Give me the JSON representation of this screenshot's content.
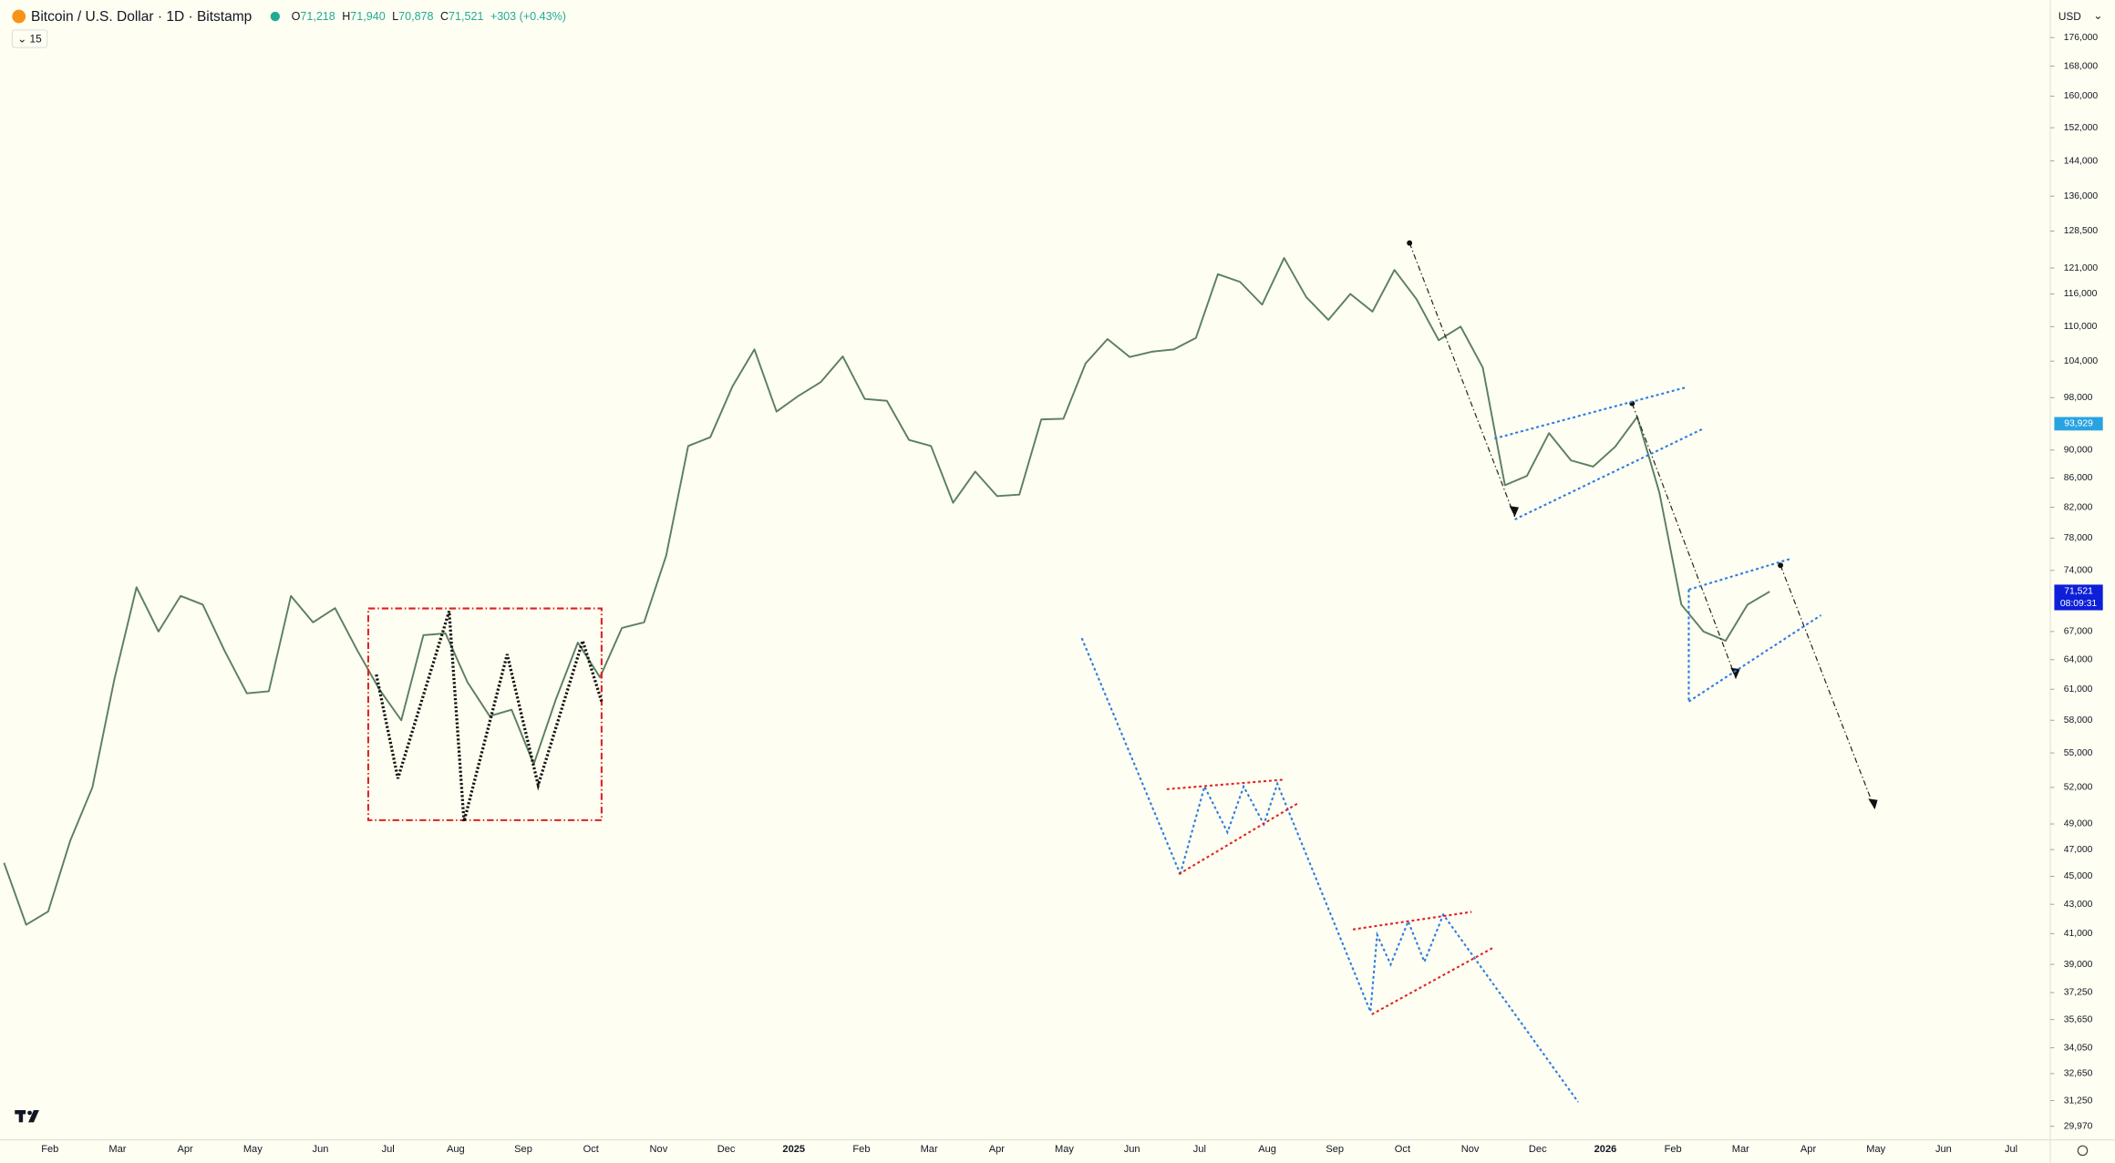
{
  "header": {
    "title": "Bitcoin / U.S. Dollar · 1D · Bitstamp",
    "ohlc": [
      {
        "label": "O",
        "value": "71,218"
      },
      {
        "label": "H",
        "value": "71,940"
      },
      {
        "label": "L",
        "value": "70,878"
      },
      {
        "label": "C",
        "value": "71,521"
      }
    ],
    "change": "+303 (+0.43%)",
    "indicator": "15",
    "currency": "USD"
  },
  "chart_data": {
    "type": "line",
    "log_scale": true,
    "color": "#5b7f63",
    "x_labels": [
      "Feb",
      "Mar",
      "Apr",
      "May",
      "Jun",
      "Jul",
      "Aug",
      "Sep",
      "Oct",
      "Nov",
      "Dec",
      "2025",
      "Feb",
      "Mar",
      "Apr",
      "May",
      "Jun",
      "Jul",
      "Aug",
      "Sep",
      "Oct",
      "Nov",
      "Dec",
      "2026",
      "Feb",
      "Mar",
      "Apr",
      "May",
      "Jun",
      "Jul"
    ],
    "values": [
      46000,
      41600,
      42500,
      47700,
      52000,
      62000,
      72000,
      67000,
      71000,
      70000,
      64900,
      60600,
      60800,
      71000,
      68000,
      69600,
      65000,
      61000,
      58000,
      66600,
      66800,
      61700,
      58400,
      59000,
      54000,
      60000,
      65800,
      62200,
      67400,
      68000,
      75800,
      90600,
      91900,
      99800,
      106000,
      95800,
      98300,
      100500,
      104800,
      97800,
      97500,
      91500,
      90600,
      82600,
      86900,
      83500,
      83700,
      94600,
      94700,
      103600,
      107800,
      104700,
      105600,
      106000,
      108000,
      119800,
      118300,
      114000,
      123000,
      115400,
      111200,
      116000,
      112700,
      120600,
      115000,
      107600,
      110000,
      102900,
      85000,
      86300,
      92500,
      88500,
      87600,
      90500,
      95000,
      84000,
      70000,
      67000,
      66000,
      70000,
      71500
    ],
    "ylim": [
      29320,
      187000
    ],
    "yticks": [
      {
        "value": 176000,
        "label": "176,000"
      },
      {
        "value": 168000,
        "label": "168,000"
      },
      {
        "value": 160000,
        "label": "160,000"
      },
      {
        "value": 152000,
        "label": "152,000"
      },
      {
        "value": 144000,
        "label": "144,000"
      },
      {
        "value": 136000,
        "label": "136,000"
      },
      {
        "value": 128500,
        "label": "128,500"
      },
      {
        "value": 121000,
        "label": "121,000"
      },
      {
        "value": 116000,
        "label": "116,000"
      },
      {
        "value": 110000,
        "label": "110,000"
      },
      {
        "value": 104000,
        "label": "104,000"
      },
      {
        "value": 98000,
        "label": "98,000"
      },
      {
        "value": 90000,
        "label": "90,000"
      },
      {
        "value": 86000,
        "label": "86,000"
      },
      {
        "value": 82000,
        "label": "82,000"
      },
      {
        "value": 78000,
        "label": "78,000"
      },
      {
        "value": 74000,
        "label": "74,000"
      },
      {
        "value": 67000,
        "label": "67,000"
      },
      {
        "value": 64000,
        "label": "64,000"
      },
      {
        "value": 61000,
        "label": "61,000"
      },
      {
        "value": 58000,
        "label": "58,000"
      },
      {
        "value": 55000,
        "label": "55,000"
      },
      {
        "value": 52000,
        "label": "52,000"
      },
      {
        "value": 49000,
        "label": "49,000"
      },
      {
        "value": 47000,
        "label": "47,000"
      },
      {
        "value": 45000,
        "label": "45,000"
      },
      {
        "value": 43000,
        "label": "43,000"
      },
      {
        "value": 41000,
        "label": "41,000"
      },
      {
        "value": 39000,
        "label": "39,000"
      },
      {
        "value": 37250,
        "label": "37,250"
      },
      {
        "value": 35650,
        "label": "35,650"
      },
      {
        "value": 34050,
        "label": "34,050"
      },
      {
        "value": 32650,
        "label": "32,650"
      },
      {
        "value": 31250,
        "label": "31,250"
      },
      {
        "value": 29970,
        "label": "29,970"
      }
    ],
    "price_markers": [
      {
        "value": 93929,
        "label": "93,929",
        "color": "#29a3e0"
      },
      {
        "value": 71521,
        "label": "71,521",
        "sub": "08:09:31",
        "color": "#0d1fd8"
      }
    ]
  }
}
